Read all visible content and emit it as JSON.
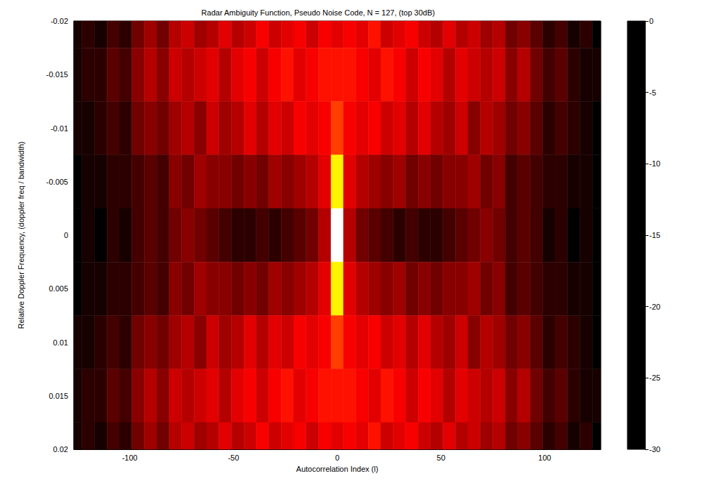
{
  "chart_data": {
    "type": "heatmap",
    "title": "Radar Ambiguity Function, Pseudo Noise Code, N = 127, (top 30dB)",
    "x_label": "Autocorrelation Index (l)",
    "y_label": "Relative Doppler Frequency, (doppler freq / bandwidth)",
    "xlim": [
      -127,
      127
    ],
    "xticks": [
      -100,
      -50,
      0,
      50,
      100
    ],
    "ylim": [
      -0.02,
      0.02
    ],
    "yticks": [
      -0.02,
      -0.015,
      -0.01,
      -0.005,
      0,
      0.005,
      0.01,
      0.015,
      0.02
    ],
    "cells": {
      "x": [
        -126,
        -120,
        -114,
        -108,
        -102,
        -96,
        -90,
        -84,
        -78,
        -72,
        -66,
        -60,
        -54,
        -48,
        -42,
        -36,
        -30,
        -24,
        -18,
        -12,
        -6,
        0,
        6,
        12,
        18,
        24,
        30,
        36,
        42,
        48,
        54,
        60,
        66,
        72,
        78,
        84,
        90,
        96,
        102,
        108,
        114,
        120,
        126
      ],
      "y": [
        -0.02,
        -0.015,
        -0.01,
        -0.005,
        0,
        0.005,
        0.01,
        0.015,
        0.02
      ],
      "values": [
        [
          -29,
          -28,
          -29,
          -27,
          -28,
          -25,
          -23,
          -25,
          -22,
          -21,
          -23,
          -22,
          -20,
          -22,
          -21,
          -19,
          -21,
          -20,
          -19,
          -21,
          -19,
          -20,
          -19,
          -20,
          -18,
          -21,
          -20,
          -19,
          -21,
          -22,
          -20,
          -22,
          -21,
          -23,
          -22,
          -25,
          -24,
          -26,
          -28,
          -27,
          -29,
          -28,
          -30
        ],
        [
          -29,
          -28,
          -28,
          -26,
          -27,
          -24,
          -22,
          -24,
          -21,
          -22,
          -21,
          -20,
          -22,
          -20,
          -19,
          -21,
          -19,
          -18,
          -20,
          -19,
          -18,
          -18,
          -18,
          -19,
          -20,
          -18,
          -19,
          -21,
          -19,
          -20,
          -22,
          -20,
          -21,
          -22,
          -21,
          -24,
          -22,
          -25,
          -27,
          -26,
          -28,
          -29,
          -29
        ],
        [
          -29,
          -29,
          -28,
          -27,
          -28,
          -25,
          -24,
          -25,
          -23,
          -22,
          -24,
          -21,
          -23,
          -22,
          -20,
          -22,
          -20,
          -21,
          -19,
          -20,
          -19,
          -16,
          -19,
          -20,
          -19,
          -21,
          -20,
          -22,
          -20,
          -22,
          -23,
          -21,
          -24,
          -22,
          -23,
          -25,
          -24,
          -26,
          -28,
          -27,
          -28,
          -29,
          -30
        ],
        [
          -30,
          -29,
          -29,
          -28,
          -28,
          -27,
          -26,
          -27,
          -24,
          -25,
          -23,
          -24,
          -24,
          -25,
          -24,
          -25,
          -23,
          -24,
          -23,
          -22,
          -20,
          -8,
          -20,
          -22,
          -23,
          -24,
          -23,
          -25,
          -24,
          -25,
          -24,
          -24,
          -23,
          -25,
          -24,
          -27,
          -26,
          -27,
          -28,
          -28,
          -29,
          -29,
          -30
        ],
        [
          -30,
          -29,
          -30,
          -28,
          -29,
          -27,
          -26,
          -27,
          -25,
          -24,
          -25,
          -26,
          -27,
          -28,
          -28,
          -27,
          -28,
          -27,
          -26,
          -25,
          -22,
          0,
          -22,
          -25,
          -26,
          -27,
          -28,
          -27,
          -28,
          -28,
          -27,
          -26,
          -25,
          -24,
          -25,
          -27,
          -26,
          -27,
          -29,
          -28,
          -30,
          -29,
          -30
        ],
        [
          -30,
          -29,
          -29,
          -28,
          -28,
          -27,
          -26,
          -27,
          -24,
          -25,
          -23,
          -24,
          -24,
          -25,
          -24,
          -25,
          -23,
          -24,
          -23,
          -22,
          -20,
          -8,
          -20,
          -22,
          -23,
          -24,
          -23,
          -25,
          -24,
          -25,
          -24,
          -24,
          -23,
          -25,
          -24,
          -27,
          -26,
          -27,
          -28,
          -28,
          -29,
          -29,
          -30
        ],
        [
          -29,
          -29,
          -28,
          -27,
          -28,
          -25,
          -24,
          -25,
          -23,
          -22,
          -24,
          -21,
          -23,
          -22,
          -20,
          -22,
          -20,
          -21,
          -19,
          -20,
          -19,
          -16,
          -19,
          -20,
          -19,
          -21,
          -20,
          -22,
          -20,
          -22,
          -23,
          -21,
          -24,
          -22,
          -23,
          -25,
          -24,
          -26,
          -28,
          -27,
          -28,
          -29,
          -30
        ],
        [
          -29,
          -28,
          -28,
          -26,
          -27,
          -24,
          -22,
          -24,
          -21,
          -22,
          -21,
          -20,
          -22,
          -20,
          -19,
          -21,
          -19,
          -18,
          -20,
          -19,
          -18,
          -18,
          -18,
          -19,
          -20,
          -18,
          -19,
          -21,
          -19,
          -20,
          -22,
          -20,
          -21,
          -22,
          -21,
          -24,
          -22,
          -25,
          -27,
          -26,
          -28,
          -29,
          -29
        ],
        [
          -29,
          -28,
          -29,
          -27,
          -28,
          -25,
          -23,
          -25,
          -22,
          -21,
          -23,
          -22,
          -20,
          -22,
          -21,
          -19,
          -21,
          -20,
          -19,
          -21,
          -19,
          -20,
          -19,
          -20,
          -18,
          -21,
          -20,
          -19,
          -21,
          -22,
          -20,
          -22,
          -21,
          -23,
          -22,
          -25,
          -24,
          -26,
          -28,
          -27,
          -29,
          -28,
          -30
        ]
      ]
    },
    "colorbar": {
      "range": [
        -30,
        0
      ],
      "ticks": [
        -30,
        -25,
        -20,
        -15,
        -10,
        -5,
        0
      ]
    }
  }
}
